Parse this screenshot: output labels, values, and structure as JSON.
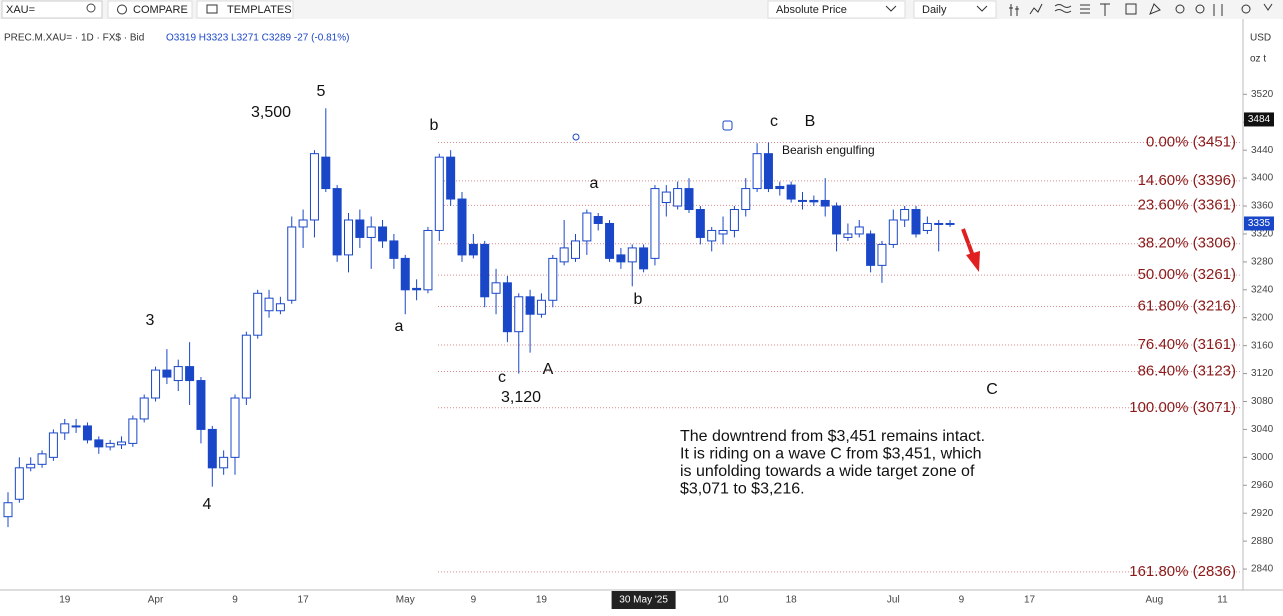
{
  "toolbar": {
    "symbol": "XAU=",
    "compare": "COMPARE",
    "templates": "TEMPLATES",
    "price_mode": "Absolute Price",
    "interval": "Daily"
  },
  "header": {
    "instrument": "PREC.M.XAU= · 1D · FX$ · Bid",
    "ohlc": "O3319 H3323 L3271 C3289 -27 (-0.81%)"
  },
  "axis_units": {
    "currency": "USD",
    "unit": "oz t"
  },
  "chart_data": {
    "type": "candlestick",
    "categories": [
      null,
      null,
      null,
      null,
      null,
      "19",
      null,
      null,
      null,
      null,
      null,
      null,
      null,
      "Apr",
      null,
      null,
      null,
      null,
      null,
      null,
      "9",
      null,
      null,
      null,
      null,
      null,
      "17",
      null,
      null,
      null,
      null,
      null,
      null,
      null,
      null,
      "May",
      null,
      null,
      null,
      null,
      null,
      "9",
      null,
      null,
      null,
      null,
      null,
      "19",
      null,
      null,
      null,
      null,
      null,
      null,
      null,
      null,
      "30 May '25",
      null,
      null,
      null,
      null,
      null,
      null,
      "10",
      null,
      null,
      null,
      null,
      null,
      "18",
      null,
      null,
      null,
      null,
      null,
      null,
      null,
      null,
      "Jul",
      null,
      null,
      null,
      null,
      null,
      "9",
      null,
      null,
      null,
      null,
      null,
      "17",
      null,
      null,
      null,
      null,
      null,
      null,
      null,
      null,
      null,
      null,
      "Aug",
      null,
      null,
      null,
      null,
      null,
      "11",
      null
    ],
    "open": [
      2915,
      2940,
      2985,
      2990,
      3000,
      3035,
      3045,
      3045,
      3025,
      3015,
      3018,
      3020,
      3055,
      3085,
      3125,
      3110,
      3130,
      3110,
      3040,
      2985,
      3000,
      3085,
      3175,
      3210,
      3210,
      3225,
      3330,
      3340,
      3430,
      3385,
      3290,
      3340,
      3315,
      3330,
      3310,
      3285,
      3242,
      3240,
      3325,
      3430,
      3370,
      3305,
      3305,
      3235,
      3250,
      3180,
      3230,
      3205,
      3225,
      3280,
      3285,
      3310,
      3345,
      3335,
      3290,
      3280,
      3300,
      3285,
      3365,
      3360,
      3385,
      3355,
      3310,
      3320,
      3325,
      3355,
      3385,
      3435,
      3388,
      3390,
      3368,
      3368,
      3368,
      3360,
      3315,
      3320,
      3320,
      3275,
      3305,
      3340,
      3355,
      3325,
      3335,
      3335,
      null,
      null,
      null,
      null,
      null,
      null,
      null,
      null,
      null,
      null,
      null,
      null,
      null,
      null,
      null,
      null,
      null,
      null,
      null,
      null,
      null,
      null,
      null,
      null,
      null
    ],
    "high": [
      2950,
      3000,
      3000,
      3010,
      3040,
      3055,
      3055,
      3050,
      3030,
      3025,
      3030,
      3060,
      3090,
      3130,
      3155,
      3140,
      3165,
      3115,
      3045,
      3010,
      3090,
      3180,
      3240,
      3240,
      3230,
      3345,
      3355,
      3440,
      3500,
      3390,
      3350,
      3355,
      3345,
      3340,
      3320,
      3290,
      3255,
      3330,
      3435,
      3440,
      3380,
      3320,
      3310,
      3270,
      3260,
      3235,
      3240,
      3235,
      3290,
      3340,
      3320,
      3355,
      3350,
      3340,
      3300,
      3305,
      3305,
      3390,
      3390,
      3395,
      3400,
      3360,
      3330,
      3345,
      3360,
      3400,
      3450,
      3451,
      3395,
      3395,
      3380,
      3375,
      3400,
      3365,
      3335,
      3340,
      3325,
      3310,
      3355,
      3360,
      3360,
      3345,
      3340,
      3340,
      null,
      null,
      null,
      null,
      null,
      null,
      null,
      null,
      null,
      null,
      null,
      null,
      null,
      null,
      null,
      null,
      null,
      null,
      null,
      null,
      null,
      null,
      null,
      null,
      null
    ],
    "low": [
      2900,
      2935,
      2980,
      2985,
      2995,
      3025,
      3035,
      3020,
      3005,
      3010,
      3012,
      3015,
      3050,
      3080,
      3105,
      3095,
      3075,
      3020,
      2958,
      2975,
      2975,
      3075,
      3170,
      3200,
      3205,
      3220,
      3300,
      3315,
      3380,
      3280,
      3265,
      3300,
      3270,
      3300,
      3270,
      3205,
      3225,
      3235,
      3310,
      3360,
      3280,
      3285,
      3215,
      3205,
      3165,
      3120,
      3150,
      3200,
      3215,
      3275,
      3280,
      3290,
      3325,
      3280,
      3270,
      3245,
      3265,
      3275,
      3345,
      3355,
      3350,
      3305,
      3295,
      3305,
      3315,
      3345,
      3380,
      3380,
      3375,
      3365,
      3355,
      3360,
      3345,
      3295,
      3310,
      3315,
      3265,
      3250,
      3300,
      3330,
      3315,
      3320,
      3295,
      3330,
      null,
      null,
      null,
      null,
      null,
      null,
      null,
      null,
      null,
      null,
      null,
      null,
      null,
      null,
      null,
      null,
      null,
      null,
      null,
      null,
      null,
      null,
      null,
      null,
      null
    ],
    "close": [
      2935,
      2985,
      2990,
      3005,
      3035,
      3048,
      3045,
      3025,
      3015,
      3020,
      3022,
      3055,
      3085,
      3125,
      3115,
      3130,
      3110,
      3040,
      2985,
      3000,
      3085,
      3175,
      3235,
      3228,
      3220,
      3330,
      3340,
      3435,
      3385,
      3290,
      3340,
      3315,
      3330,
      3310,
      3285,
      3240,
      3240,
      3325,
      3430,
      3370,
      3290,
      3290,
      3230,
      3250,
      3180,
      3230,
      3205,
      3225,
      3285,
      3300,
      3310,
      3350,
      3335,
      3285,
      3280,
      3300,
      3270,
      3385,
      3380,
      3385,
      3355,
      3315,
      3325,
      3325,
      3355,
      3385,
      3435,
      3385,
      3385,
      3370,
      3368,
      3366,
      3360,
      3320,
      3320,
      3330,
      3275,
      3305,
      3340,
      3355,
      3320,
      3335,
      3335,
      3335,
      null,
      null,
      null,
      null,
      null,
      null,
      null,
      null,
      null,
      null,
      null,
      null,
      null,
      null,
      null,
      null,
      null,
      null,
      null,
      null,
      null,
      null,
      null,
      null,
      null
    ],
    "up_color": "#ffffff",
    "down_color": "#1a47c8",
    "outline_color": "#1a47c8",
    "ylim": [
      2810,
      3615
    ],
    "yticks": [
      2840,
      2880,
      2920,
      2960,
      3000,
      3040,
      3080,
      3120,
      3160,
      3200,
      3240,
      3280,
      3320,
      3360,
      3400,
      3440,
      3480,
      3520
    ],
    "price_markers": [
      3484,
      3335
    ],
    "price_marker_colors": [
      "#111111",
      "#1a47c8"
    ],
    "fib_levels": [
      {
        "value": 3451,
        "label": "0.00% (3451)"
      },
      {
        "value": 3396,
        "label": "14.60% (3396)"
      },
      {
        "value": 3361,
        "label": "23.60% (3361)"
      },
      {
        "value": 3306,
        "label": "38.20% (3306)"
      },
      {
        "value": 3261,
        "label": "50.00% (3261)"
      },
      {
        "value": 3216,
        "label": "61.80% (3216)"
      },
      {
        "value": 3161,
        "label": "76.40% (3161)"
      },
      {
        "value": 3123,
        "label": "86.40% (3123)"
      },
      {
        "value": 3071,
        "label": "100.00% (3071)"
      },
      {
        "value": 2836,
        "label": "161.80% (2836)"
      }
    ],
    "fib_color": "#8b1a1a",
    "annotations": [
      "5",
      "3,500",
      "3",
      "4",
      "a",
      "b",
      "c",
      "3,120",
      "A",
      "a",
      "b",
      "c",
      "B",
      "C",
      "Bearish engulfing"
    ],
    "note": [
      "The downtrend from $3,451 remains intact.",
      "It is riding on a wave C from $3,451, which",
      "is unfolding towards a wide target zone of",
      "$3,071 to $3,216."
    ]
  }
}
